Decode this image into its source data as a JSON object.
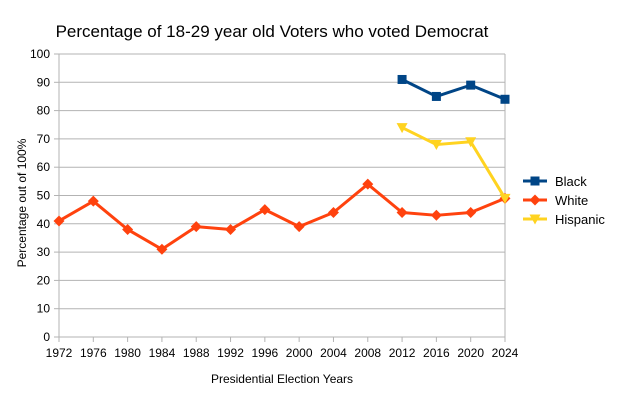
{
  "chart_data": {
    "type": "line",
    "title": "Percentage of 18-29 year old Voters who voted Democrat",
    "xlabel": "Presidential Election Years",
    "ylabel": "Percentage out of 100%",
    "categories": [
      "1972",
      "1976",
      "1980",
      "1984",
      "1988",
      "1992",
      "1996",
      "2000",
      "2004",
      "2008",
      "2012",
      "2016",
      "2020",
      "2024"
    ],
    "ylim": [
      0,
      100
    ],
    "yticks": [
      0,
      10,
      20,
      30,
      40,
      50,
      60,
      70,
      80,
      90,
      100
    ],
    "grid": "horizontal",
    "legend_position": "right",
    "series": [
      {
        "name": "Black",
        "color": "#004586",
        "marker": "square",
        "values": [
          null,
          null,
          null,
          null,
          null,
          null,
          null,
          null,
          null,
          null,
          91,
          85,
          89,
          84
        ]
      },
      {
        "name": "White",
        "color": "#ff420e",
        "marker": "diamond",
        "values": [
          41,
          48,
          38,
          31,
          39,
          38,
          45,
          39,
          44,
          54,
          44,
          43,
          44,
          49
        ]
      },
      {
        "name": "Hispanic",
        "color": "#ffd320",
        "marker": "triangle-down",
        "values": [
          null,
          null,
          null,
          null,
          null,
          null,
          null,
          null,
          null,
          null,
          74,
          68,
          69,
          49
        ]
      }
    ]
  }
}
